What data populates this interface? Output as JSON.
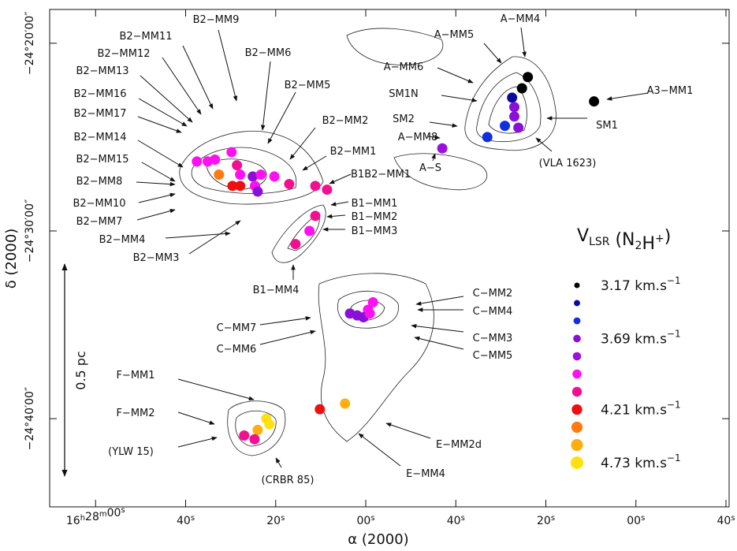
{
  "chart_data": {
    "type": "scatter",
    "x_label": "α (2000)",
    "y_label": "δ (2000)",
    "xlim": [
      58690.2,
      58539.3
    ],
    "ylim": [
      -1484.7,
      -1458.2
    ],
    "xticks": [
      {
        "value": 58680,
        "label": "16h28m00s"
      },
      {
        "value": 58660,
        "label": "40s"
      },
      {
        "value": 58640,
        "label": "20s"
      },
      {
        "value": 58620,
        "label": "00s"
      },
      {
        "value": 58600,
        "label": "40s"
      },
      {
        "value": 58580,
        "label": "20s"
      },
      {
        "value": 58560,
        "label": "00s"
      },
      {
        "value": 58540,
        "label": "40s"
      }
    ],
    "yticks": [
      {
        "value": -1460,
        "label": "−24°20′00″"
      },
      {
        "value": -1470,
        "label": "−24°30′00″"
      },
      {
        "value": -1480,
        "label": "−24°40′00″"
      }
    ],
    "x": [
      58584.0,
      58585.3,
      58587.5,
      58587.0,
      58587.0,
      58586.1,
      58589.1,
      58593.0,
      58603.0,
      58569.3,
      58649.8,
      58655.1,
      58653.5,
      58648.6,
      58652.6,
      58649.6,
      58647.9,
      58647.9,
      58645.1,
      58643.3,
      58644.6,
      58644.0,
      58640.3,
      58637.0,
      58631.2,
      58628.6,
      58657.5,
      58631.2,
      58632.5,
      58635.6,
      58618.4,
      58619.5,
      58620.5,
      58621.9,
      58623.5,
      58619.1,
      58624.6,
      58630.2,
      58642.1,
      58644.0,
      58647.0,
      58644.7,
      58641.4
    ],
    "values": [
      -1461.8,
      -1462.4,
      -1462.9,
      -1463.4,
      -1463.9,
      -1464.5,
      -1464.4,
      -1465.0,
      -1465.6,
      -1463.1,
      -1465.8,
      -1466.3,
      -1466.2,
      -1466.5,
      -1467.0,
      -1467.6,
      -1467.6,
      -1467.0,
      -1467.1,
      -1467.0,
      -1467.6,
      -1467.9,
      -1467.1,
      -1467.5,
      -1467.6,
      -1467.8,
      -1466.3,
      -1469.2,
      -1470.0,
      -1470.7,
      -1473.8,
      -1474.2,
      -1474.6,
      -1474.5,
      -1474.4,
      -1474.4,
      -1479.2,
      -1479.5,
      -1480.0,
      -1480.6,
      -1480.9,
      -1481.1,
      -1480.3
    ],
    "colors": [
      "#000000",
      "#000000",
      "#0a0aa0",
      "#8a10d8",
      "#8a10d8",
      "#8a10d8",
      "#1030e0",
      "#1030e0",
      "#9a10e0",
      "#000000",
      "#ff10f0",
      "#ff10f0",
      "#ff10f0",
      "#f21090",
      "#ff7a10",
      "#ee1010",
      "#ee1010",
      "#ff10f0",
      "#8a10d8",
      "#ff10f0",
      "#ff10f0",
      "#8a10d8",
      "#ff10f0",
      "#f21090",
      "#f21090",
      "#f21090",
      "#ff10f0",
      "#f21090",
      "#ff10f0",
      "#f21090",
      "#ff10f0",
      "#ff10f0",
      "#8a10d8",
      "#8a10d8",
      "#8a10d8",
      "#ff10f0",
      "#ffae10",
      "#ee1010",
      "#ffe010",
      "#ffae10",
      "#f21090",
      "#f21090",
      "#ffe010"
    ],
    "annotations": [
      "B2−MM9",
      "B2−MM11",
      "B2−MM12",
      "B2−MM6",
      "B2−MM13",
      "B2−MM5",
      "B2−MM16",
      "B2−MM2",
      "B2−MM17",
      "B2−MM14",
      "B2−MM1",
      "A−MM8",
      "B2−MM15",
      "B1B2−MM1",
      "B2−MM8",
      "A−S",
      "B2−MM10",
      "B1−MM1",
      "B1−MM2",
      "B2−MM7",
      "B1−MM3",
      "B2−MM4",
      "B2−MM3",
      "B1−MM4",
      "SM1N",
      "A−MM6",
      "A−MM5",
      "A−MM4",
      "A3−MM1",
      "SM2",
      "SM1",
      "(VLA 1623)",
      "C−MM2",
      "C−MM4",
      "C−MM7",
      "C−MM3",
      "C−MM6",
      "C−MM5",
      "F−MM1",
      "F−MM2",
      "E−MM2d",
      "(YLW 15)",
      "E−MM4",
      "(CRBR 85)"
    ],
    "scale_bar": "0.5 pc",
    "legend": {
      "title": [
        {
          "text": "V"
        },
        {
          "text": "LSR",
          "style": "sub"
        },
        {
          "text": " (N"
        },
        {
          "text": "2",
          "style": "sub"
        },
        {
          "text": "H"
        },
        {
          "text": "+",
          "style": "sup"
        },
        {
          "text": ")"
        }
      ],
      "items": [
        {
          "color": "#000000",
          "label": {
            "text": "3.17 km.s",
            "sup": "−1"
          }
        },
        {
          "color": "#0a0aa0"
        },
        {
          "color": "#1030e0"
        },
        {
          "color": "#8a10d8",
          "label": {
            "text": "3.69 km.s",
            "sup": "−1"
          }
        },
        {
          "color": "#9a10e0"
        },
        {
          "color": "#ff10f0"
        },
        {
          "color": "#f21090"
        },
        {
          "color": "#ee1010",
          "label": {
            "text": "4.21 km.s",
            "sup": "−1"
          }
        },
        {
          "color": "#ff7a10"
        },
        {
          "color": "#ffae10"
        },
        {
          "color": "#ffe010",
          "label": {
            "text": "4.73 km.s",
            "sup": "−1"
          }
        }
      ]
    }
  }
}
